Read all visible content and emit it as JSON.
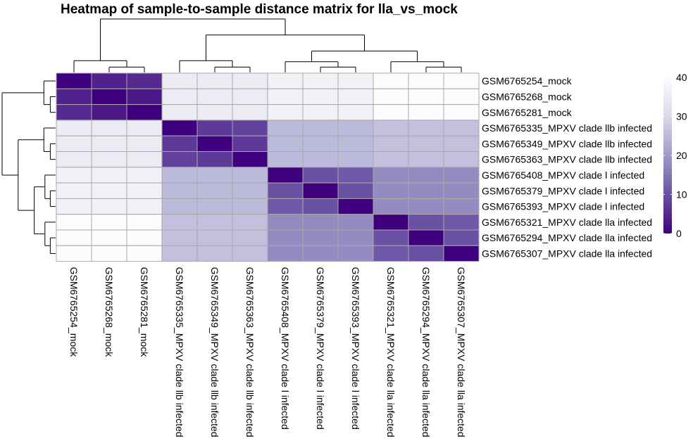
{
  "chart_data": {
    "type": "heatmap",
    "title": "Heatmap of sample-to-sample distance matrix for lla_vs_mock",
    "samples": [
      "GSM6765254_mock",
      "GSM6765268_mock",
      "GSM6765281_mock",
      "GSM6765335_MPXV clade llb infected",
      "GSM6765349_MPXV clade llb infected",
      "GSM6765363_MPXV clade llb infected",
      "GSM6765408_MPXV clade l infected",
      "GSM6765379_MPXV clade l infected",
      "GSM6765393_MPXV clade l infected",
      "GSM6765321_MPXV clade lla infected",
      "GSM6765294_MPXV clade lla infected",
      "GSM6765307_MPXV clade lla infected"
    ],
    "matrix": [
      [
        0,
        4,
        5,
        35,
        35,
        35,
        37,
        37,
        37,
        40,
        40,
        40
      ],
      [
        4,
        0,
        3,
        35,
        35,
        35,
        37,
        37,
        37,
        40,
        40,
        40
      ],
      [
        5,
        3,
        0,
        35,
        35,
        35,
        37,
        37,
        37,
        40,
        40,
        40
      ],
      [
        35,
        35,
        35,
        0,
        7,
        8,
        25,
        25,
        25,
        26,
        26,
        26
      ],
      [
        35,
        35,
        35,
        7,
        0,
        7,
        25,
        25,
        25,
        26,
        26,
        26
      ],
      [
        35,
        35,
        35,
        8,
        7,
        0,
        25,
        25,
        25,
        26,
        26,
        26
      ],
      [
        37,
        37,
        37,
        25,
        25,
        25,
        0,
        10,
        11,
        18,
        18,
        18
      ],
      [
        37,
        37,
        37,
        25,
        25,
        25,
        10,
        0,
        10,
        18,
        18,
        18
      ],
      [
        37,
        37,
        37,
        25,
        25,
        25,
        11,
        10,
        0,
        18,
        18,
        18
      ],
      [
        40,
        40,
        40,
        26,
        26,
        26,
        18,
        18,
        18,
        0,
        10,
        11
      ],
      [
        40,
        40,
        40,
        26,
        26,
        26,
        18,
        18,
        18,
        10,
        0,
        10
      ],
      [
        40,
        40,
        40,
        26,
        26,
        26,
        18,
        18,
        18,
        11,
        10,
        0
      ]
    ],
    "color_scale": {
      "min": 0,
      "max": 40,
      "low_color": "#3f007d",
      "high_color": "#fcfbfd",
      "ticks": [
        0,
        10,
        20,
        30,
        40
      ]
    },
    "cell_border_color": "#a9a9a9",
    "dendrogram": {
      "groups": [
        [
          0,
          1,
          2
        ],
        [
          3,
          4,
          5
        ],
        [
          6,
          7,
          8
        ],
        [
          9,
          10,
          11
        ]
      ],
      "linkage": "complete"
    }
  }
}
